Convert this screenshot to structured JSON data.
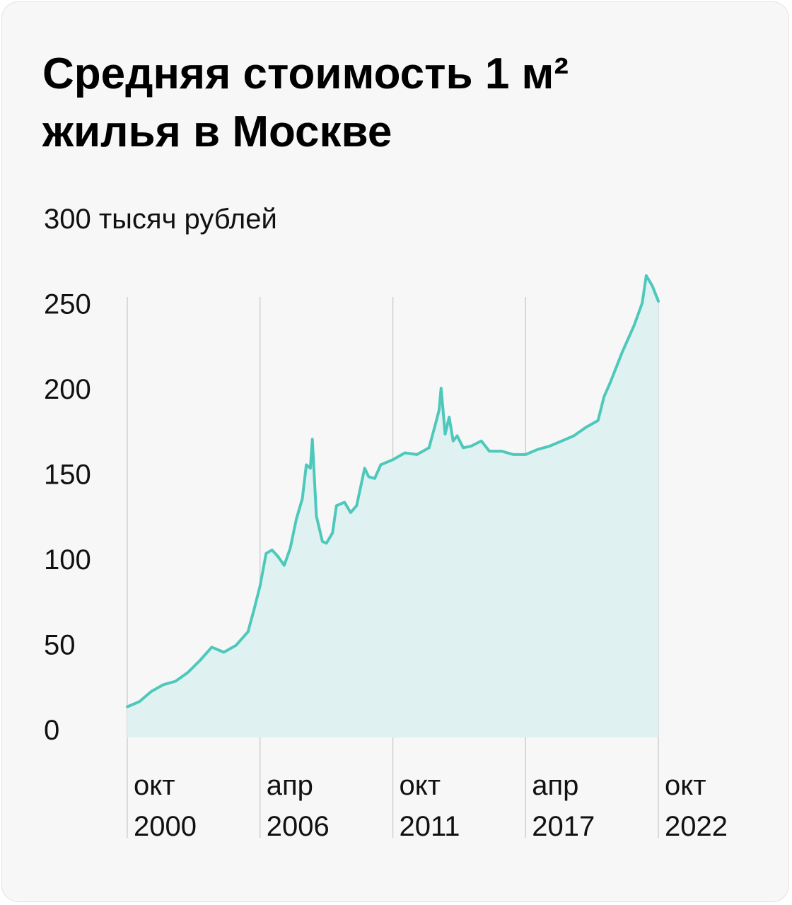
{
  "colors": {
    "background": "#f7f7f7",
    "line": "#4fc8bc",
    "area": "#dff1f0",
    "grid": "#d0d0d0"
  },
  "chart_data": {
    "type": "area",
    "title": "Средняя стоимость 1 м²\nжилья в Москве",
    "ylabel": "",
    "y_ticks": [
      {
        "value": 300,
        "label": "300 тысяч рублей"
      },
      {
        "value": 250,
        "label": "250"
      },
      {
        "value": 200,
        "label": "200"
      },
      {
        "value": 150,
        "label": "150"
      },
      {
        "value": 100,
        "label": "100"
      },
      {
        "value": 50,
        "label": "50"
      },
      {
        "value": 0,
        "label": "0"
      }
    ],
    "ylim": [
      0,
      300
    ],
    "x_ticks": [
      {
        "date": "2000-10",
        "line1": "окт",
        "line2": "2000"
      },
      {
        "date": "2006-04",
        "line1": "апр",
        "line2": "2006"
      },
      {
        "date": "2011-10",
        "line1": "окт",
        "line2": "2011"
      },
      {
        "date": "2017-04",
        "line1": "апр",
        "line2": "2017"
      },
      {
        "date": "2022-10",
        "line1": "окт",
        "line2": "2022"
      }
    ],
    "xlim": [
      "2000-10",
      "2022-10"
    ],
    "grid": "vertical",
    "points": [
      [
        "2000-10",
        18
      ],
      [
        "2001-04",
        21
      ],
      [
        "2001-10",
        27
      ],
      [
        "2002-04",
        31
      ],
      [
        "2002-10",
        33
      ],
      [
        "2003-04",
        38
      ],
      [
        "2003-10",
        45
      ],
      [
        "2004-04",
        53
      ],
      [
        "2004-10",
        50
      ],
      [
        "2005-04",
        54
      ],
      [
        "2005-10",
        62
      ],
      [
        "2006-01",
        75
      ],
      [
        "2006-04",
        89
      ],
      [
        "2006-07",
        108
      ],
      [
        "2006-10",
        110
      ],
      [
        "2007-01",
        106
      ],
      [
        "2007-04",
        101
      ],
      [
        "2007-07",
        111
      ],
      [
        "2007-10",
        128
      ],
      [
        "2008-01",
        140
      ],
      [
        "2008-03",
        160
      ],
      [
        "2008-05",
        158
      ],
      [
        "2008-06",
        175
      ],
      [
        "2008-08",
        130
      ],
      [
        "2008-11",
        115
      ],
      [
        "2009-01",
        114
      ],
      [
        "2009-04",
        120
      ],
      [
        "2009-06",
        136
      ],
      [
        "2009-10",
        138
      ],
      [
        "2010-01",
        132
      ],
      [
        "2010-04",
        136
      ],
      [
        "2010-08",
        158
      ],
      [
        "2010-10",
        153
      ],
      [
        "2011-01",
        152
      ],
      [
        "2011-04",
        160
      ],
      [
        "2011-10",
        163
      ],
      [
        "2012-04",
        167
      ],
      [
        "2012-10",
        166
      ],
      [
        "2013-04",
        170
      ],
      [
        "2013-07",
        183
      ],
      [
        "2013-09",
        192
      ],
      [
        "2013-10",
        205
      ],
      [
        "2013-12",
        178
      ],
      [
        "2014-02",
        188
      ],
      [
        "2014-04",
        174
      ],
      [
        "2014-06",
        177
      ],
      [
        "2014-09",
        170
      ],
      [
        "2015-01",
        171
      ],
      [
        "2015-06",
        174
      ],
      [
        "2015-10",
        168
      ],
      [
        "2016-04",
        168
      ],
      [
        "2016-10",
        166
      ],
      [
        "2017-04",
        166
      ],
      [
        "2017-10",
        169
      ],
      [
        "2018-04",
        171
      ],
      [
        "2018-10",
        174
      ],
      [
        "2019-04",
        177
      ],
      [
        "2019-10",
        182
      ],
      [
        "2020-04",
        186
      ],
      [
        "2020-07",
        200
      ],
      [
        "2020-10",
        208
      ],
      [
        "2021-04",
        226
      ],
      [
        "2021-10",
        242
      ],
      [
        "2022-02",
        255
      ],
      [
        "2022-04",
        271
      ],
      [
        "2022-07",
        265
      ],
      [
        "2022-10",
        256
      ]
    ]
  }
}
